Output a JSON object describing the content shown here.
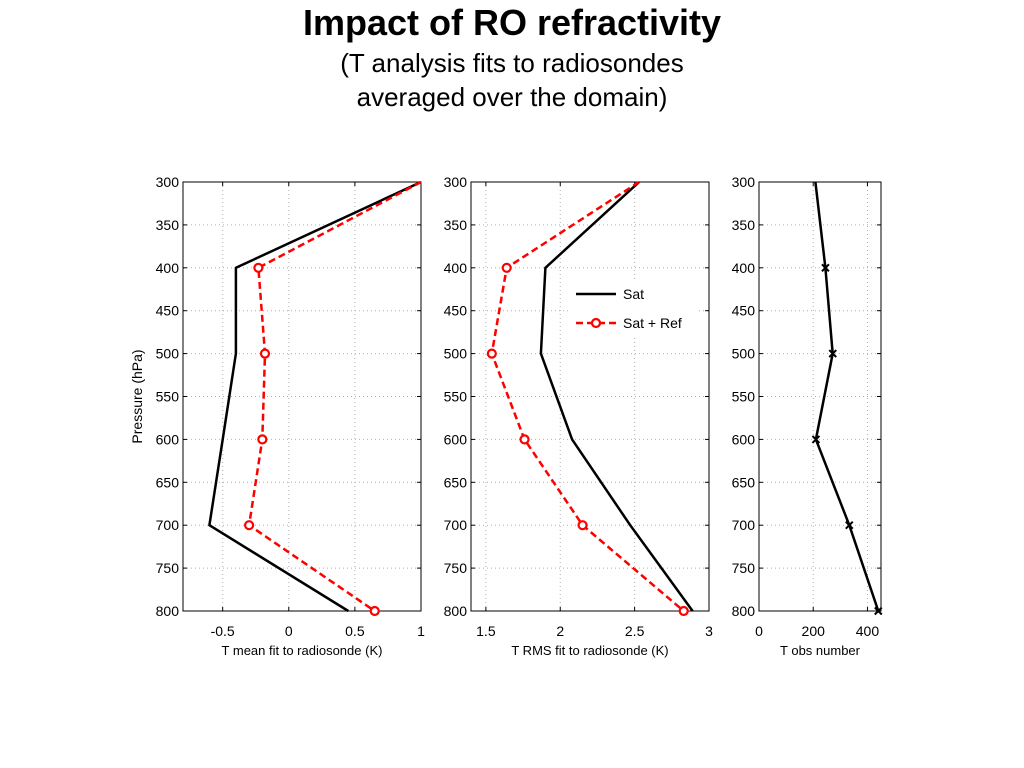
{
  "slide": {
    "title": "Impact of RO refractivity",
    "subtitle_line1": "(T analysis fits to radiosondes",
    "subtitle_line2": "averaged over the domain)"
  },
  "chart_data": [
    {
      "type": "line",
      "xlabel": "T mean fit to radiosonde (K)",
      "ylabel": "Pressure (hPa)",
      "xlim": [
        -0.8,
        1
      ],
      "ylim": [
        300,
        800
      ],
      "y_reversed": true,
      "grid": true,
      "x_ticks": [
        -0.5,
        0,
        0.5,
        1
      ],
      "x_tick_labels": [
        "-0.5",
        "0",
        "0.5",
        "1"
      ],
      "y_ticks": [
        300,
        350,
        400,
        450,
        500,
        550,
        600,
        650,
        700,
        750,
        800
      ],
      "series": [
        {
          "name": "Sat",
          "color": "#000000",
          "dash": "solid",
          "marker": "none",
          "x": [
            1.0,
            -0.4,
            -0.4,
            -0.5,
            -0.6,
            0.45
          ],
          "y": [
            300,
            400,
            500,
            600,
            700,
            800
          ]
        },
        {
          "name": "Sat + Ref",
          "color": "#ff0000",
          "dash": "dashed",
          "marker": "circle",
          "x": [
            1.0,
            -0.23,
            -0.18,
            -0.2,
            -0.3,
            0.65
          ],
          "y": [
            300,
            400,
            500,
            600,
            700,
            800
          ]
        }
      ]
    },
    {
      "type": "line",
      "xlabel": "T RMS fit to radiosonde (K)",
      "ylabel": "",
      "xlim": [
        1.4,
        3
      ],
      "ylim": [
        300,
        800
      ],
      "y_reversed": true,
      "grid": true,
      "x_ticks": [
        1.5,
        2,
        2.5,
        3
      ],
      "x_tick_labels": [
        "1.5",
        "2",
        "2.5",
        "3"
      ],
      "y_ticks": [
        300,
        350,
        400,
        450,
        500,
        550,
        600,
        650,
        700,
        750,
        800
      ],
      "legend": {
        "position": "upper-right",
        "entries": [
          "Sat",
          "Sat + Ref"
        ]
      },
      "series": [
        {
          "name": "Sat",
          "color": "#000000",
          "dash": "solid",
          "marker": "none",
          "x": [
            2.53,
            1.9,
            1.87,
            2.08,
            2.47,
            2.89
          ],
          "y": [
            300,
            400,
            500,
            600,
            700,
            800
          ]
        },
        {
          "name": "Sat + Ref",
          "color": "#ff0000",
          "dash": "dashed",
          "marker": "circle",
          "x": [
            2.53,
            1.64,
            1.54,
            1.76,
            2.15,
            2.83
          ],
          "y": [
            300,
            400,
            500,
            600,
            700,
            800
          ]
        }
      ]
    },
    {
      "type": "line",
      "xlabel": "T obs number",
      "ylabel": "",
      "xlim": [
        0,
        450
      ],
      "ylim": [
        300,
        800
      ],
      "y_reversed": true,
      "grid": true,
      "x_ticks": [
        0,
        200,
        400
      ],
      "x_tick_labels": [
        "0",
        "200",
        "400"
      ],
      "y_ticks": [
        300,
        350,
        400,
        450,
        500,
        550,
        600,
        650,
        700,
        750,
        800
      ],
      "series": [
        {
          "name": "",
          "color": "#000000",
          "dash": "solid",
          "marker": "x",
          "x": [
            208,
            245,
            272,
            210,
            333,
            440
          ],
          "y": [
            300,
            400,
            500,
            600,
            700,
            800
          ],
          "marker_from": 1
        }
      ]
    }
  ]
}
